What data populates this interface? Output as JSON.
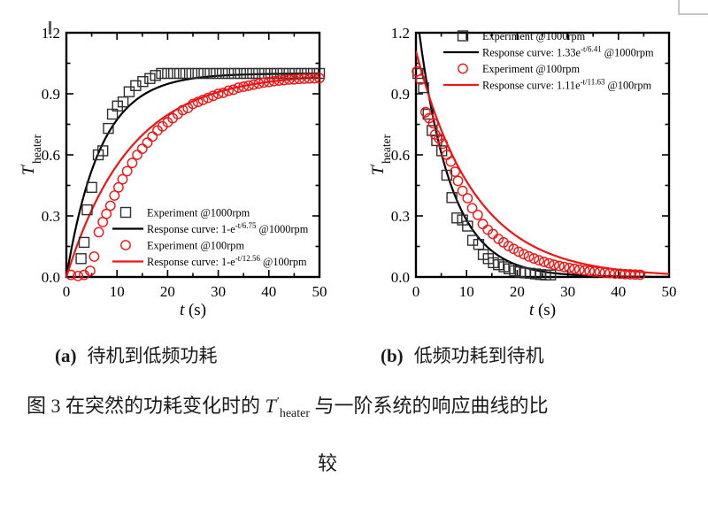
{
  "page": {
    "background": "#ffffff",
    "fragment_color": "#c6c6c6"
  },
  "captions": {
    "a_label": "(a)",
    "a_text": "待机到低频功耗",
    "b_label": "(b)",
    "b_text": "低频功耗到待机",
    "fig_prefix": "图 3 在突然的功耗变化时的 ",
    "fig_symbol_base": "T",
    "fig_symbol_prime": "′",
    "fig_symbol_sub": "heater",
    "fig_suffix": " 与一阶系统的响应曲线的比",
    "fig_line2": "较"
  },
  "chart_data": [
    {
      "id": "a",
      "type": "scatter+line",
      "panel_label": "(a)",
      "panel_caption": "待机到低频功耗",
      "xlabel_italic": "t",
      "xlabel_rest": " (s)",
      "ylabel": {
        "base": "T",
        "prime": "′",
        "sub": "heater"
      },
      "xlim": [
        0,
        50
      ],
      "ylim": [
        0,
        1.2
      ],
      "x_ticks": [
        0,
        10,
        20,
        30,
        40,
        50
      ],
      "x_minor_ticks": [
        5,
        15,
        25,
        35,
        45
      ],
      "y_ticks": [
        0.0,
        0.3,
        0.6,
        0.9,
        1.2
      ],
      "y_tick_labels": [
        "0.0",
        "0.3",
        "0.6",
        "0.9",
        "1.2"
      ],
      "y_minor_ticks": [
        0.15,
        0.45,
        0.75,
        1.05
      ],
      "grid": false,
      "legend_position": "lower right",
      "axis_color": "#000000",
      "series": [
        {
          "label": "Experiment @1000rpm",
          "role": "scatter",
          "marker": "square",
          "color": "#2f2f2f",
          "legend": {
            "pre": "Experiment @1000rpm",
            "sup": "",
            "post": ""
          },
          "points": [
            [
              2.9,
              0.09
            ],
            [
              3.5,
              0.17
            ],
            [
              4.1,
              0.33
            ],
            [
              5.0,
              0.44
            ],
            [
              6.3,
              0.6
            ],
            [
              7.2,
              0.62
            ],
            [
              8.3,
              0.73
            ],
            [
              9.1,
              0.8
            ],
            [
              10.1,
              0.84
            ],
            [
              11.2,
              0.86
            ],
            [
              12.4,
              0.91
            ],
            [
              13.7,
              0.94
            ],
            [
              15.1,
              0.96
            ],
            [
              16.5,
              0.975
            ],
            [
              17.6,
              0.99
            ],
            [
              18.8,
              1.0
            ],
            [
              20.0,
              1.0
            ],
            [
              21.2,
              1.0
            ],
            [
              22.4,
              1.0
            ],
            [
              23.6,
              1.0
            ],
            [
              24.8,
              1.0
            ],
            [
              26.0,
              1.0
            ],
            [
              27.2,
              1.0
            ],
            [
              28.4,
              1.0
            ],
            [
              29.6,
              1.0
            ],
            [
              30.8,
              1.0
            ],
            [
              32.0,
              1.0
            ],
            [
              33.2,
              1.0
            ],
            [
              34.4,
              1.0
            ],
            [
              35.6,
              1.0
            ],
            [
              36.8,
              1.0
            ],
            [
              38.0,
              1.0
            ],
            [
              39.2,
              1.0
            ],
            [
              40.4,
              1.0
            ],
            [
              41.6,
              1.0
            ],
            [
              42.8,
              1.0
            ],
            [
              44.0,
              1.0
            ],
            [
              45.2,
              1.0
            ],
            [
              46.4,
              1.0
            ],
            [
              47.6,
              1.0
            ],
            [
              48.8,
              1.0
            ],
            [
              50.0,
              1.0
            ]
          ]
        },
        {
          "label": "Response curve: 1-e^(-t/6.75) @1000rpm",
          "role": "curve",
          "color": "#000000",
          "curve": {
            "form": "rise",
            "A": 1,
            "tau": 6.75
          },
          "legend": {
            "pre": "Response curve: 1-e",
            "sup": "-t/6.75",
            "post": " @1000rpm"
          }
        },
        {
          "label": "Experiment @100rpm",
          "role": "scatter",
          "marker": "circle",
          "color": "#ee1515",
          "legend": {
            "pre": "Experiment @100rpm",
            "sup": "",
            "post": ""
          },
          "points": [
            [
              0.9,
              0.01
            ],
            [
              2.3,
              0.005
            ],
            [
              3.5,
              0.01
            ],
            [
              4.7,
              0.03
            ],
            [
              5.5,
              0.1
            ],
            [
              6.4,
              0.22
            ],
            [
              7.2,
              0.27
            ],
            [
              7.9,
              0.31
            ],
            [
              8.7,
              0.35
            ],
            [
              9.5,
              0.4
            ],
            [
              10.3,
              0.44
            ],
            [
              11.1,
              0.48
            ],
            [
              12.0,
              0.52
            ],
            [
              13.0,
              0.56
            ],
            [
              14.0,
              0.6
            ],
            [
              15.0,
              0.63
            ],
            [
              16.0,
              0.66
            ],
            [
              17.0,
              0.69
            ],
            [
              18.0,
              0.72
            ],
            [
              19.0,
              0.74
            ],
            [
              20.0,
              0.76
            ],
            [
              21.0,
              0.78
            ],
            [
              22.0,
              0.8
            ],
            [
              23.0,
              0.82
            ],
            [
              24.0,
              0.83
            ],
            [
              25.0,
              0.85
            ],
            [
              26.0,
              0.86
            ],
            [
              27.0,
              0.87
            ],
            [
              28.0,
              0.88
            ],
            [
              29.0,
              0.89
            ],
            [
              30.0,
              0.9
            ],
            [
              31.0,
              0.905
            ],
            [
              32.0,
              0.915
            ],
            [
              33.0,
              0.92
            ],
            [
              34.0,
              0.93
            ],
            [
              35.0,
              0.935
            ],
            [
              36.0,
              0.94
            ],
            [
              37.0,
              0.945
            ],
            [
              38.0,
              0.95
            ],
            [
              39.0,
              0.955
            ],
            [
              40.0,
              0.958
            ],
            [
              41.0,
              0.962
            ],
            [
              42.0,
              0.965
            ],
            [
              43.0,
              0.967
            ],
            [
              44.0,
              0.97
            ],
            [
              45.0,
              0.971
            ],
            [
              46.0,
              0.973
            ],
            [
              47.0,
              0.974
            ],
            [
              48.0,
              0.975
            ],
            [
              49.0,
              0.976
            ],
            [
              50.0,
              0.977
            ]
          ]
        },
        {
          "label": "Response curve: 1-e^(-t/12.56) @100rpm",
          "role": "curve",
          "color": "#ee1515",
          "curve": {
            "form": "rise",
            "A": 1,
            "tau": 12.56
          },
          "legend": {
            "pre": "Response curve: 1-e",
            "sup": "-t/12.56",
            "post": " @100rpm"
          }
        }
      ]
    },
    {
      "id": "b",
      "type": "scatter+line",
      "panel_label": "(b)",
      "panel_caption": "低频功耗到待机",
      "xlabel_italic": "t",
      "xlabel_rest": " (s)",
      "ylabel": {
        "base": "T",
        "prime": "′",
        "sub": "heater"
      },
      "xlim": [
        0,
        50
      ],
      "ylim": [
        0,
        1.2
      ],
      "x_ticks": [
        0,
        10,
        20,
        30,
        40,
        50
      ],
      "x_minor_ticks": [
        5,
        15,
        25,
        35,
        45
      ],
      "y_ticks": [
        0.0,
        0.3,
        0.6,
        0.9,
        1.2
      ],
      "y_tick_labels": [
        "0.0",
        "0.3",
        "0.6",
        "0.9",
        "1.2"
      ],
      "y_minor_ticks": [
        0.15,
        0.45,
        0.75,
        1.05
      ],
      "grid": false,
      "legend_position": "upper right",
      "axis_color": "#000000",
      "series": [
        {
          "label": "Experiment @1000rpm",
          "role": "scatter",
          "marker": "square",
          "color": "#2f2f2f",
          "legend": {
            "pre": "Experiment @1000rpm",
            "sup": "",
            "post": ""
          },
          "points": [
            [
              0.4,
              1.0
            ],
            [
              1.5,
              0.93
            ],
            [
              2.4,
              0.8
            ],
            [
              3.2,
              0.72
            ],
            [
              4.1,
              0.67
            ],
            [
              5.1,
              0.62
            ],
            [
              6.1,
              0.5
            ],
            [
              7.1,
              0.39
            ],
            [
              8.1,
              0.29
            ],
            [
              9.2,
              0.28
            ],
            [
              10.2,
              0.25
            ],
            [
              11.2,
              0.18
            ],
            [
              12.4,
              0.16
            ],
            [
              13.3,
              0.11
            ],
            [
              14.3,
              0.09
            ],
            [
              15.3,
              0.07
            ],
            [
              16.3,
              0.06
            ],
            [
              17.4,
              0.05
            ],
            [
              18.4,
              0.04
            ],
            [
              19.5,
              0.03
            ],
            [
              20.6,
              0.025
            ],
            [
              21.6,
              0.02
            ],
            [
              22.6,
              0.018
            ],
            [
              23.6,
              0.015
            ],
            [
              24.6,
              0.012
            ],
            [
              25.6,
              0.01
            ],
            [
              26.6,
              0.01
            ]
          ]
        },
        {
          "label": "Response curve: 1.33e^(-t/6.41) @1000rpm",
          "role": "curve",
          "color": "#000000",
          "curve": {
            "form": "decay",
            "A": 1.33,
            "tau": 6.41
          },
          "legend": {
            "pre": "Response curve: 1.33e",
            "sup": "-t/6.41",
            "post": " @1000rpm"
          }
        },
        {
          "label": "Experiment @100rpm",
          "role": "scatter",
          "marker": "circle",
          "color": "#ee1515",
          "legend": {
            "pre": "Experiment @100rpm",
            "sup": "",
            "post": ""
          },
          "points": [
            [
              0.2,
              1.01
            ],
            [
              0.9,
              0.97
            ],
            [
              1.9,
              0.81
            ],
            [
              2.6,
              0.78
            ],
            [
              3.4,
              0.755
            ],
            [
              3.8,
              0.7
            ],
            [
              4.6,
              0.68
            ],
            [
              5.3,
              0.655
            ],
            [
              6.1,
              0.6
            ],
            [
              6.9,
              0.567
            ],
            [
              7.7,
              0.517
            ],
            [
              8.3,
              0.472
            ],
            [
              9.2,
              0.423
            ],
            [
              10.2,
              0.387
            ],
            [
              11.1,
              0.338
            ],
            [
              12.2,
              0.305
            ],
            [
              13.2,
              0.26
            ],
            [
              14.2,
              0.232
            ],
            [
              15.2,
              0.211
            ],
            [
              16.3,
              0.187
            ],
            [
              17.3,
              0.17
            ],
            [
              18.3,
              0.152
            ],
            [
              19.3,
              0.138
            ],
            [
              20.3,
              0.124
            ],
            [
              21.3,
              0.112
            ],
            [
              22.3,
              0.101
            ],
            [
              23.3,
              0.091
            ],
            [
              24.3,
              0.082
            ],
            [
              25.3,
              0.074
            ],
            [
              26.3,
              0.067
            ],
            [
              27.3,
              0.06
            ],
            [
              28.3,
              0.054
            ],
            [
              29.3,
              0.049
            ],
            [
              30.3,
              0.044
            ],
            [
              31.3,
              0.04
            ],
            [
              32.3,
              0.036
            ],
            [
              33.3,
              0.032
            ],
            [
              34.3,
              0.029
            ],
            [
              35.3,
              0.026
            ],
            [
              36.3,
              0.024
            ],
            [
              37.3,
              0.021
            ],
            [
              38.3,
              0.019
            ],
            [
              39.3,
              0.017
            ],
            [
              40.3,
              0.016
            ],
            [
              41.3,
              0.014
            ],
            [
              42.3,
              0.013
            ],
            [
              43.3,
              0.012
            ],
            [
              44.3,
              0.011
            ]
          ]
        },
        {
          "label": "Response curve: 1.11e^(-t/11.63) @100rpm",
          "role": "curve",
          "color": "#ee1515",
          "curve": {
            "form": "decay",
            "A": 1.11,
            "tau": 11.63
          },
          "legend": {
            "pre": "Response curve: 1.11e",
            "sup": "-t/11.63",
            "post": " @100rpm"
          }
        }
      ]
    }
  ]
}
